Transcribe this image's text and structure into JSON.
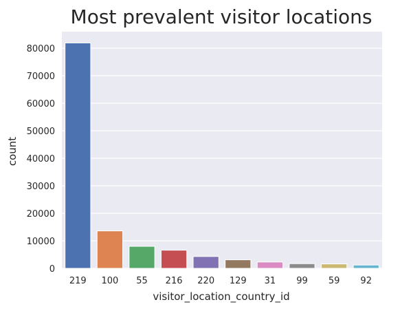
{
  "chart_data": {
    "type": "bar",
    "title": "Most prevalent visitor locations",
    "xlabel": "visitor_location_country_id",
    "ylabel": "count",
    "categories": [
      "219",
      "100",
      "55",
      "216",
      "220",
      "129",
      "31",
      "99",
      "59",
      "92"
    ],
    "values": [
      81900,
      13600,
      8000,
      6600,
      4300,
      3100,
      2300,
      1700,
      1600,
      1200
    ],
    "ylim": [
      0,
      86000
    ],
    "yticks": [
      0,
      10000,
      20000,
      30000,
      40000,
      50000,
      60000,
      70000,
      80000
    ],
    "grid": true,
    "legend": "none",
    "colors": [
      "#4c72b0",
      "#dd8452",
      "#55a868",
      "#c44e52",
      "#8172b3",
      "#937860",
      "#da8bc3",
      "#8c8c8c",
      "#ccb974",
      "#64b5cd"
    ],
    "background": "#eaeaf2"
  }
}
